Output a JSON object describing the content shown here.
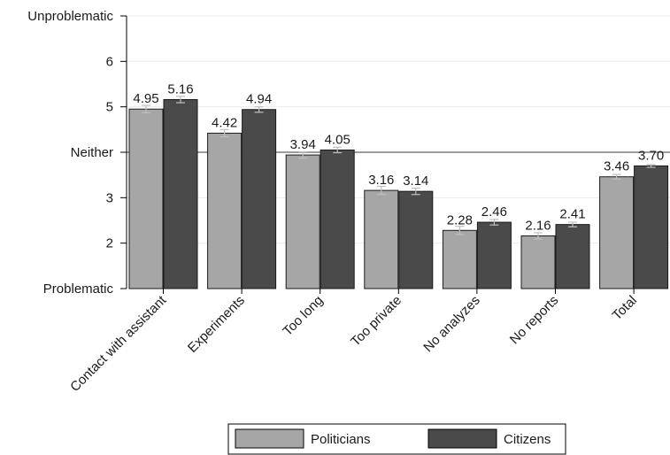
{
  "chart_data": {
    "type": "bar",
    "title": "",
    "xlabel": "",
    "ylabel": "",
    "ylim": [
      1,
      7
    ],
    "y_ticks": [
      {
        "value": 1,
        "label": "Problematic"
      },
      {
        "value": 2,
        "label": "2"
      },
      {
        "value": 3,
        "label": "3"
      },
      {
        "value": 4,
        "label": "Neither"
      },
      {
        "value": 5,
        "label": "5"
      },
      {
        "value": 6,
        "label": "6"
      },
      {
        "value": 7,
        "label": "Unproblematic"
      }
    ],
    "reference_line": 4,
    "grid": true,
    "legend_position": "bottom",
    "categories": [
      "Contact with assistant",
      "Experiments",
      "Too long",
      "Too private",
      "No analyzes",
      "No reports",
      "Total"
    ],
    "series": [
      {
        "name": "Politicians",
        "color": "#a6a6a6",
        "values": [
          4.95,
          4.42,
          3.94,
          3.16,
          2.28,
          2.16,
          3.46
        ],
        "labels": [
          "4.95",
          "4.42",
          "3.94",
          "3.16",
          "2.28",
          "2.16",
          "3.46"
        ],
        "errors": [
          0.08,
          0.08,
          0.07,
          0.09,
          0.09,
          0.07,
          0.05
        ]
      },
      {
        "name": "Citizens",
        "color": "#4a4a4a",
        "values": [
          5.16,
          4.94,
          4.05,
          3.14,
          2.46,
          2.41,
          3.7
        ],
        "labels": [
          "5.16",
          "4.94",
          "4.05",
          "3.14",
          "2.46",
          "2.41",
          "3.70"
        ],
        "errors": [
          0.07,
          0.06,
          0.06,
          0.07,
          0.06,
          0.05,
          0.03
        ]
      }
    ]
  }
}
